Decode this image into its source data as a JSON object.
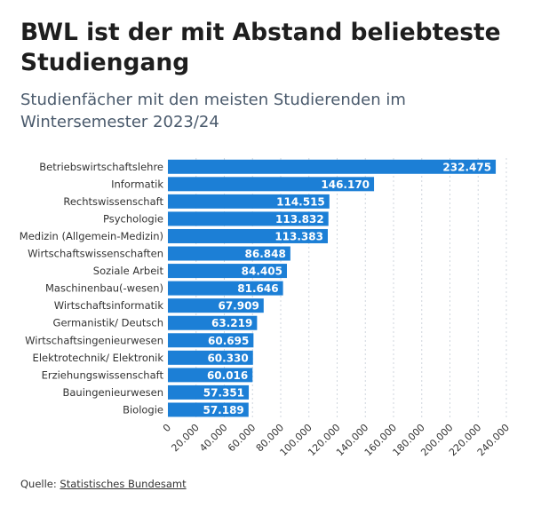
{
  "header": {
    "title": "BWL ist der mit Abstand beliebteste Studiengang",
    "subtitle": "Studienfächer mit den meisten Studierenden im Wintersemester 2023/24"
  },
  "source": {
    "label": "Quelle:",
    "link_text": "Statistisches Bundesamt"
  },
  "colors": {
    "bar": "#1c7fd6",
    "grid": "#cfd6dd",
    "label": "#333333",
    "value": "#ffffff"
  },
  "chart_data": {
    "type": "bar",
    "orientation": "horizontal",
    "title": "BWL ist der mit Abstand beliebteste Studiengang",
    "subtitle": "Studienfächer mit den meisten Studierenden im Wintersemester 2023/24",
    "xlabel": "",
    "ylabel": "",
    "xlim": [
      0,
      240000
    ],
    "grid": true,
    "categories": [
      "Betriebswirtschaftslehre",
      "Informatik",
      "Rechtswissenschaft",
      "Psychologie",
      "Medizin (Allgemein-Medizin)",
      "Wirtschaftswissenschaften",
      "Soziale Arbeit",
      "Maschinenbau(-wesen)",
      "Wirtschaftsinformatik",
      "Germanistik/ Deutsch",
      "Wirtschaftsingenieurwesen",
      "Elektrotechnik/ Elektronik",
      "Erziehungswissenschaft",
      "Bauingenieurwesen",
      "Biologie"
    ],
    "values": [
      232475,
      146170,
      114515,
      113832,
      113383,
      86848,
      84405,
      81646,
      67909,
      63219,
      60695,
      60330,
      60016,
      57351,
      57189
    ],
    "value_labels": [
      "232.475",
      "146.170",
      "114.515",
      "113.832",
      "113.383",
      "86.848",
      "84.405",
      "81.646",
      "67.909",
      "63.219",
      "60.695",
      "60.330",
      "60.016",
      "57.351",
      "57.189"
    ],
    "ticks": [
      0,
      20000,
      40000,
      60000,
      80000,
      100000,
      120000,
      140000,
      160000,
      180000,
      200000,
      220000,
      240000
    ],
    "tick_labels": [
      "0",
      "20.000",
      "40.000",
      "60.000",
      "80.000",
      "100.000",
      "120.000",
      "140.000",
      "160.000",
      "180.000",
      "200.000",
      "220.000",
      "240.000"
    ]
  }
}
